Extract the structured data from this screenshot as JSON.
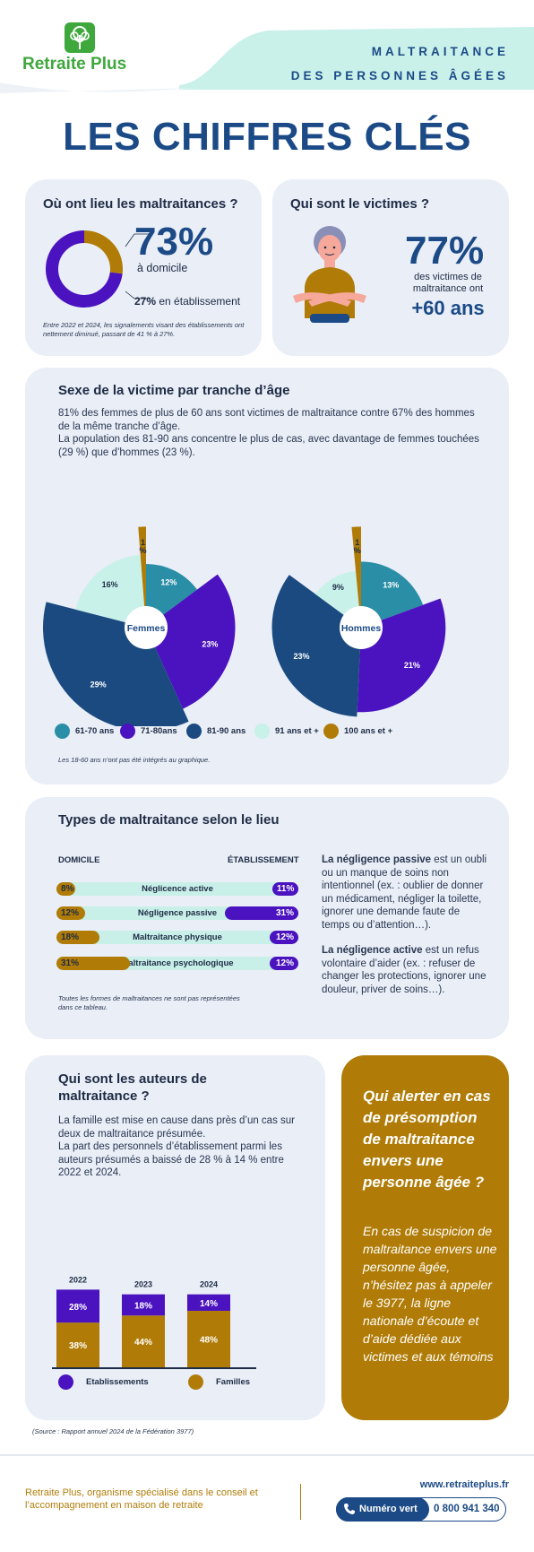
{
  "header": {
    "logo_text": "Retraite Plus",
    "title_line1": "MALTRAITANCE",
    "title_line2": "DES PERSONNES ÂGÉES",
    "main_title": "LES CHIFFRES CLÉS"
  },
  "location": {
    "title": "Où ont lieu les maltraitances ?",
    "home_pct": "73%",
    "home_label": "à domicile",
    "home_value": 73,
    "est_pct": "27%",
    "est_label": "en établissement",
    "note": "Entre 2022 et 2024, les signalements visant des établissements ont nettement diminué, passant de 41 % à 27%."
  },
  "victims": {
    "title": "Qui sont le victimes ?",
    "pct": "77%",
    "text": "des victimes de maltraitance ont",
    "age": "+60 ans"
  },
  "sex": {
    "title": "Sexe de la victime par tranche d’âge",
    "p1": "81% des femmes de plus de 60 ans sont victimes de maltraitance contre 67% des hommes de la même tranche d’âge.",
    "p2": "La population des 81-90 ans concentre le plus de cas, avec davantage de femmes touchées (29 %) que d’hommes (23 %).",
    "note": "Les 18-60 ans n’ont pas été intégrés au graphique."
  },
  "chart_data": [
    {
      "type": "pie",
      "title": "Femmes",
      "categories": [
        "61-70 ans",
        "71-80ans",
        "81-90 ans",
        "91 ans et +",
        "100 ans et +"
      ],
      "values": [
        12,
        23,
        29,
        16,
        1
      ],
      "labels": [
        "12%",
        "23%",
        "29%",
        "16%",
        "1\n%"
      ]
    },
    {
      "type": "pie",
      "title": "Hommes",
      "categories": [
        "61-70 ans",
        "71-80ans",
        "81-90 ans",
        "91 ans et +",
        "100 ans et +"
      ],
      "values": [
        13,
        21,
        23,
        9,
        1
      ],
      "labels": [
        "13%",
        "21%",
        "23%",
        "9%",
        "1\n%"
      ]
    },
    {
      "type": "bar",
      "title": "",
      "categories": [
        "Néglicence active",
        "Négligence passive",
        "Maltraitance physique",
        "Maltraitance psychologique"
      ],
      "series": [
        {
          "name": "DOMICILE",
          "values": [
            8,
            12,
            18,
            31
          ]
        },
        {
          "name": "ÉTABLISSEMENT",
          "values": [
            11,
            31,
            12,
            12
          ]
        }
      ]
    },
    {
      "type": "bar",
      "title": "",
      "categories": [
        "2022",
        "2023",
        "2024"
      ],
      "series": [
        {
          "name": "Etablissements",
          "values": [
            28,
            18,
            14
          ]
        },
        {
          "name": "Familles",
          "values": [
            38,
            44,
            48
          ]
        }
      ]
    }
  ],
  "legend": [
    "61-70 ans",
    "71-80ans",
    "81-90 ans",
    "91 ans et +",
    "100 ans et +"
  ],
  "colors": {
    "c6170": "#2a8ea6",
    "c7180": "#4b12c0",
    "c8190": "#1a4a80",
    "c91": "#c8f1ea",
    "c100": "#b07c07",
    "navy": "#1b4a86",
    "green": "#3fa83d"
  },
  "types": {
    "title": "Types de maltraitance selon le lieu",
    "col_home": "DOMICILE",
    "col_est": "ÉTABLISSEMENT",
    "rows": [
      {
        "label": "Néglicence active",
        "home": "8%",
        "est": "11%"
      },
      {
        "label": "Négligence passive",
        "home": "12%",
        "est": "31%"
      },
      {
        "label": "Maltraitance physique",
        "home": "18%",
        "est": "12%"
      },
      {
        "label": "Maltraitance psychologique",
        "home": "31%",
        "est": "12%"
      }
    ],
    "note": "Toutes les formes de maltraitances ne sont pas représentées dans ce tableau.",
    "passive_bold": "La négligence passive",
    "passive_text": "est un oubli ou un manque de soins non intentionnel (ex. : oublier de donner un médicament, négliger la toilette, ignorer une demande faute de temps ou d’attention…).",
    "active_bold": "La négligence active",
    "active_text": "est un refus volontaire d’aider (ex. : refuser de changer les protections, ignorer une douleur, priver de soins…)."
  },
  "authors": {
    "title": "Qui sont les auteurs de maltraitance ?",
    "p1": "La famille est mise en cause dans près d’un cas sur deux de maltraitance présumée.",
    "p2": "La part des personnels d’établissement parmi les auteurs présumés a baissé de 28 % à 14 % entre 2022 et 2024.",
    "years": [
      "2022",
      "2023",
      "2024"
    ],
    "est_labels": [
      "28%",
      "18%",
      "14%"
    ],
    "fam_labels": [
      "38%",
      "44%",
      "48%"
    ],
    "legend_est": "Etablissements",
    "legend_fam": "Familles"
  },
  "alert": {
    "title": "Qui alerter en cas de présomption de maltraitance envers une personne âgée ?",
    "text": "En cas de suspicion de maltraitance envers une personne âgée, n’hésitez pas à appeler le 3977, la ligne nationale d’écoute et d’aide dédiée aux victimes et aux témoins"
  },
  "source": "(Source : Rapport annuel 2024 de la Fédération 3977)",
  "footer": {
    "text": "Retraite Plus, organisme spécialisé dans le conseil et l’accompagnement en maison de retraite",
    "site": "www.retraiteplus.fr",
    "numero_label": "Numéro vert",
    "numero": "0 800 941 340"
  }
}
